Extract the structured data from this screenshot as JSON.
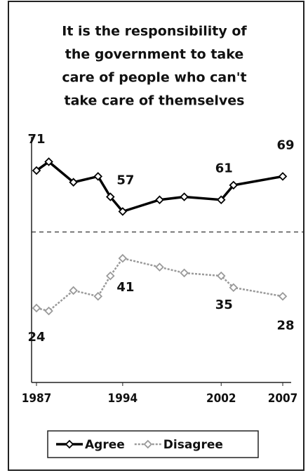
{
  "chart_data": {
    "type": "line",
    "title": [
      "It is the responsibility of",
      "the government to take",
      "care of people who can't",
      "take care of themselves"
    ],
    "x": [
      1987,
      1988,
      1990,
      1992,
      1993,
      1994,
      1997,
      1999,
      2002,
      2003,
      2007
    ],
    "series": [
      {
        "name": "Agree",
        "color": "#000000",
        "label_position": "above",
        "values": [
          71,
          74,
          67,
          69,
          62,
          57,
          61,
          62,
          61,
          66,
          69
        ],
        "value_labels": [
          "71",
          null,
          null,
          null,
          null,
          "57",
          null,
          null,
          "61",
          null,
          "69"
        ]
      },
      {
        "name": "Disagree",
        "color": "#9a9a9a",
        "label_position": "below",
        "values": [
          24,
          23,
          30,
          28,
          35,
          41,
          38,
          36,
          35,
          31,
          28
        ],
        "value_labels": [
          "24",
          null,
          null,
          null,
          null,
          "41",
          null,
          null,
          "35",
          null,
          "28"
        ]
      }
    ],
    "xlim": [
      1987,
      2007
    ],
    "xticks": [
      1987,
      1994,
      2002,
      2007
    ],
    "ylim": [
      0,
      80
    ],
    "reference_line": 50,
    "legend": "bottom"
  }
}
